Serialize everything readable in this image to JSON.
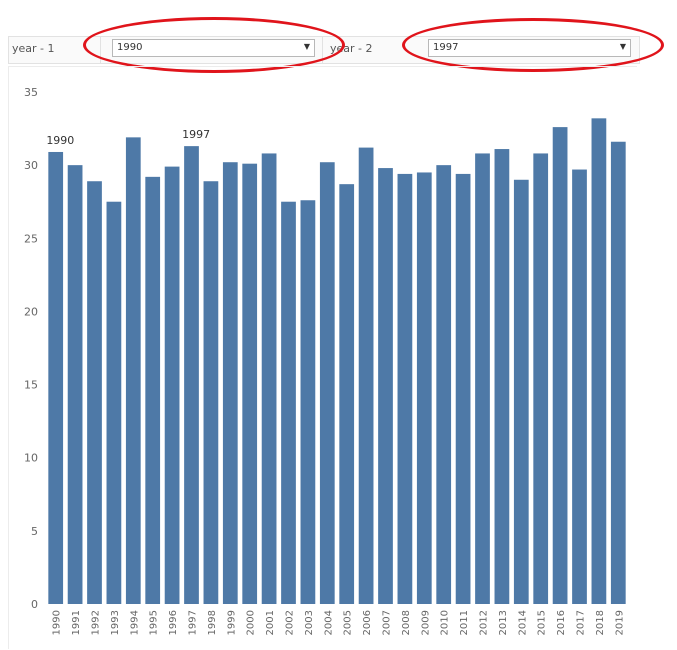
{
  "controls": {
    "year1_label": "year - 1",
    "year1_value": "1990",
    "year2_label": "year - 2",
    "year2_value": "1997"
  },
  "chart_data": {
    "type": "bar",
    "categories": [
      "1990",
      "1991",
      "1992",
      "1993",
      "1994",
      "1995",
      "1996",
      "1997",
      "1998",
      "1999",
      "2000",
      "2001",
      "2002",
      "2003",
      "2004",
      "2005",
      "2006",
      "2007",
      "2008",
      "2009",
      "2010",
      "2011",
      "2012",
      "2013",
      "2014",
      "2015",
      "2016",
      "2017",
      "2018",
      "2019"
    ],
    "values": [
      30.9,
      30.0,
      28.9,
      27.5,
      31.9,
      29.2,
      29.9,
      31.3,
      28.9,
      30.2,
      30.1,
      30.8,
      27.5,
      27.6,
      30.2,
      28.7,
      31.2,
      29.8,
      29.4,
      29.5,
      30.0,
      29.4,
      30.8,
      31.1,
      29.0,
      30.8,
      32.6,
      29.7,
      33.2,
      31.6
    ],
    "highlight_labels": [
      {
        "category": "1990",
        "text": "1990"
      },
      {
        "category": "1997",
        "text": "1997"
      }
    ],
    "yticks": [
      0,
      5,
      10,
      15,
      20,
      25,
      30,
      35
    ],
    "ylim": [
      0,
      35
    ],
    "bar_color": "#4e79a7",
    "annotation_color": "#e0141b",
    "grid": false
  }
}
